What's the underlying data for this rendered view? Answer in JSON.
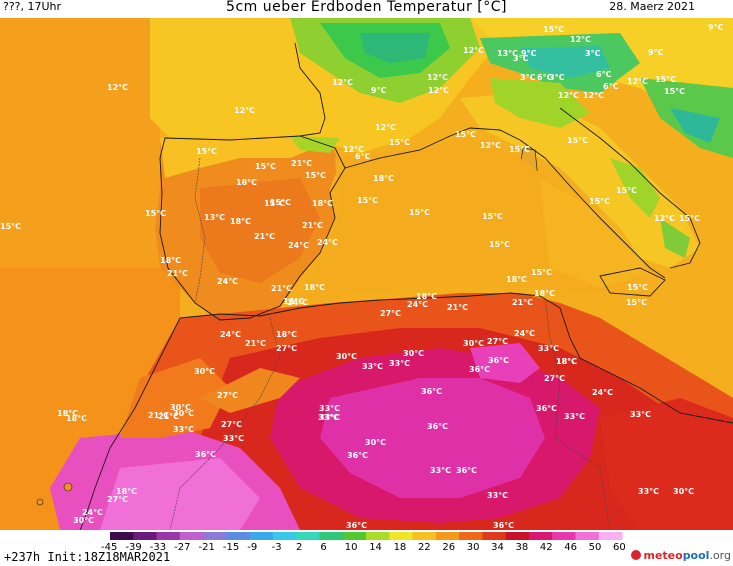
{
  "header": {
    "left": "???, 17Uhr",
    "title": "5cm ueber Erdboden Temperatur [°C]",
    "date": "28. Maerz 2021"
  },
  "footer": {
    "run": "+237h Init:18Z18MAR2021",
    "brand_main": "meteo",
    "brand_accent": "pool",
    "brand_suffix": ".org"
  },
  "scale": {
    "labels": [
      "-45",
      "-39",
      "-33",
      "-27",
      "-21",
      "-15",
      "-9",
      "-3",
      "2",
      "6",
      "10",
      "14",
      "18",
      "22",
      "26",
      "30",
      "34",
      "38",
      "42",
      "46",
      "50",
      "60"
    ],
    "colors": [
      "#3a0a4a",
      "#6a1a7a",
      "#9a36a8",
      "#c060d0",
      "#8c7ad8",
      "#5c8ce0",
      "#3aa8ec",
      "#38c8e8",
      "#36d8b8",
      "#2ec878",
      "#50c830",
      "#a8dc28",
      "#f0e628",
      "#f8c020",
      "#f49a1a",
      "#ee6a18",
      "#e03a18",
      "#c8102a",
      "#d81870",
      "#e838b0",
      "#f070d8",
      "#f8b0f0"
    ]
  },
  "map_labels": [
    {
      "t": "12°C"
    },
    {
      "t": "12°C"
    },
    {
      "t": "15°C"
    },
    {
      "t": "12°C"
    },
    {
      "t": "9°C"
    },
    {
      "t": "12°C"
    },
    {
      "t": "13°C"
    },
    {
      "t": "3°C"
    },
    {
      "t": "9°C"
    },
    {
      "t": "12°C"
    },
    {
      "t": "3°C"
    },
    {
      "t": "9°C"
    },
    {
      "t": "6°C"
    },
    {
      "t": "3°C"
    },
    {
      "t": "6°C"
    },
    {
      "t": "3°C"
    },
    {
      "t": "6°C"
    },
    {
      "t": "12°C"
    },
    {
      "t": "15°C"
    },
    {
      "t": "15°C"
    },
    {
      "t": "12°C"
    },
    {
      "t": "12°C"
    },
    {
      "t": "15°C"
    },
    {
      "t": "15°C"
    },
    {
      "t": "12°C"
    },
    {
      "t": "9°C"
    },
    {
      "t": "12°C"
    },
    {
      "t": "12°C"
    },
    {
      "t": "12°C"
    },
    {
      "t": "6°C"
    },
    {
      "t": "15°C"
    },
    {
      "t": "15°C"
    },
    {
      "t": "15°C"
    },
    {
      "t": "15°C"
    },
    {
      "t": "21°C"
    },
    {
      "t": "15°C"
    },
    {
      "t": "18°C"
    },
    {
      "t": "18°C"
    },
    {
      "t": "12°C"
    },
    {
      "t": "15°C"
    },
    {
      "t": "18°C"
    },
    {
      "t": "15°C"
    },
    {
      "t": "15°C"
    },
    {
      "t": "15°C"
    },
    {
      "t": "15°C"
    },
    {
      "t": "15°C"
    },
    {
      "t": "13°C"
    },
    {
      "t": "18°C"
    },
    {
      "t": "21°C"
    },
    {
      "t": "15°C"
    },
    {
      "t": "15°C"
    },
    {
      "t": "15°C"
    },
    {
      "t": "12°C"
    },
    {
      "t": "15°C"
    },
    {
      "t": "21°C"
    },
    {
      "t": "24°C"
    },
    {
      "t": "24°C"
    },
    {
      "t": "15°C"
    },
    {
      "t": "18°C"
    },
    {
      "t": "21°C"
    },
    {
      "t": "24°C"
    },
    {
      "t": "18°C"
    },
    {
      "t": "15°C"
    },
    {
      "t": "21°C"
    },
    {
      "t": "18°C"
    },
    {
      "t": "18°C"
    },
    {
      "t": "24°C"
    },
    {
      "t": "15°C"
    },
    {
      "t": "15°C"
    },
    {
      "t": "18°C"
    },
    {
      "t": "24°C"
    },
    {
      "t": "21°C"
    },
    {
      "t": "18°C"
    },
    {
      "t": "21°C"
    },
    {
      "t": "27°C"
    },
    {
      "t": "24°C"
    },
    {
      "t": "18°C"
    },
    {
      "t": "21°C"
    },
    {
      "t": "27°C"
    },
    {
      "t": "24°C"
    },
    {
      "t": "30°C"
    },
    {
      "t": "27°C"
    },
    {
      "t": "33°C"
    },
    {
      "t": "30°C"
    },
    {
      "t": "36°C"
    },
    {
      "t": "33°C"
    },
    {
      "t": "18°C"
    },
    {
      "t": "33°C"
    },
    {
      "t": "36°C"
    },
    {
      "t": "30°C"
    },
    {
      "t": "18°C"
    },
    {
      "t": "27°C"
    },
    {
      "t": "27°C"
    },
    {
      "t": "24°C"
    },
    {
      "t": "30°C"
    },
    {
      "t": "36°C"
    },
    {
      "t": "21°C"
    },
    {
      "t": "18°C"
    },
    {
      "t": "30°C"
    },
    {
      "t": "33°C"
    },
    {
      "t": "36°C"
    },
    {
      "t": "33°C"
    },
    {
      "t": "33°C"
    },
    {
      "t": "21°C"
    },
    {
      "t": "30°C"
    },
    {
      "t": "33°C"
    },
    {
      "t": "27°C"
    },
    {
      "t": "33°C"
    },
    {
      "t": "33°C"
    },
    {
      "t": "18°C"
    },
    {
      "t": "30°C"
    },
    {
      "t": "36°C"
    },
    {
      "t": "36°C"
    },
    {
      "t": "33°C"
    },
    {
      "t": "33°C"
    },
    {
      "t": "36°C"
    },
    {
      "t": "33°C"
    },
    {
      "t": "33°C"
    },
    {
      "t": "30°C"
    },
    {
      "t": "18°C"
    },
    {
      "t": "27°C"
    },
    {
      "t": "36°C"
    },
    {
      "t": "24°C"
    },
    {
      "t": "30°C"
    },
    {
      "t": "36°C"
    },
    {
      "t": "36°C"
    }
  ]
}
